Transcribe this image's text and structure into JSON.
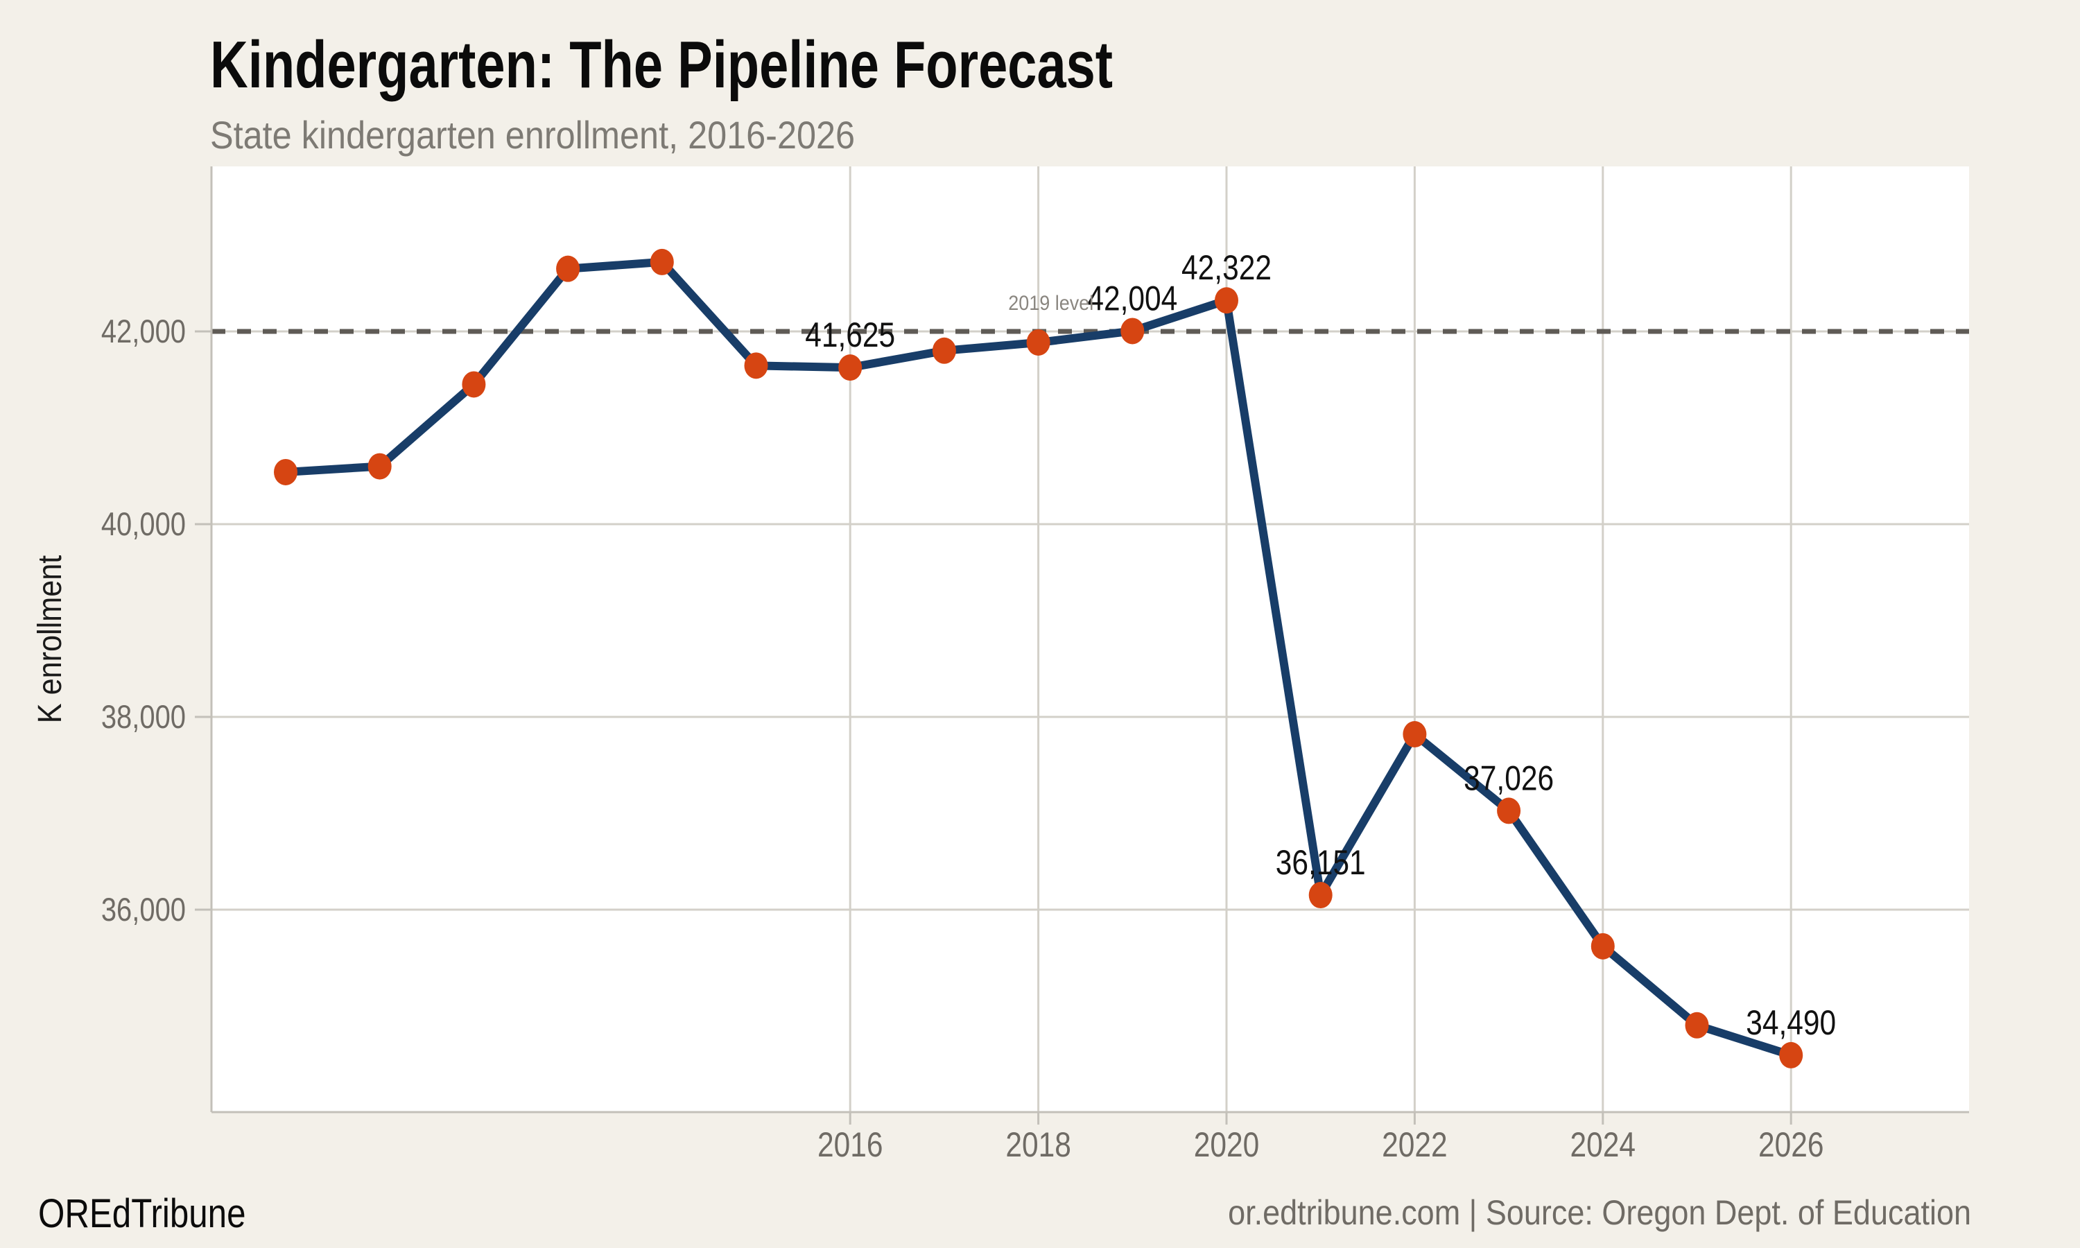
{
  "header": {
    "title": "Kindergarten: The Pipeline Forecast",
    "subtitle": "State kindergarten enrollment, 2016-2026"
  },
  "footer": {
    "brand": "OREdTribune",
    "source": "or.edtribune.com | Source: Oregon Dept. of Education"
  },
  "chart_data": {
    "type": "line",
    "title": "Kindergarten: The Pipeline Forecast",
    "subtitle": "State kindergarten enrollment, 2016-2026",
    "xlabel": "",
    "ylabel": "K enrollment",
    "x": [
      2010,
      2011,
      2012,
      2013,
      2014,
      2015,
      2016,
      2017,
      2018,
      2019,
      2020,
      2021,
      2022,
      2023,
      2024,
      2025,
      2026
    ],
    "values": [
      40540,
      40600,
      41450,
      42650,
      42720,
      41645,
      41625,
      41800,
      41885,
      42004,
      42322,
      36151,
      37820,
      37026,
      35620,
      34800,
      34490
    ],
    "point_labels": {
      "2016": "41,625",
      "2019": "42,004",
      "2020": "42,322",
      "2021": "36,151",
      "2023": "37,026",
      "2026": "34,490"
    },
    "reference_line": {
      "value": 42000,
      "label": "2019 level"
    },
    "x_ticks": [
      {
        "value": 2016,
        "label": "2016"
      },
      {
        "value": 2018,
        "label": "2018"
      },
      {
        "value": 2020,
        "label": "2020"
      },
      {
        "value": 2022,
        "label": "2022"
      },
      {
        "value": 2024,
        "label": "2024"
      },
      {
        "value": 2026,
        "label": "2026"
      }
    ],
    "y_ticks": [
      {
        "value": 36000,
        "label": "36,000"
      },
      {
        "value": 38000,
        "label": "38,000"
      },
      {
        "value": 40000,
        "label": "40,000"
      },
      {
        "value": 42000,
        "label": "42,000"
      }
    ],
    "xlim": [
      2009.2,
      2027.9
    ],
    "ylim": [
      34200,
      43350
    ],
    "grid": "on",
    "legend": "none",
    "colors": {
      "line": "#183d68",
      "marker": "#d64512",
      "reference_dash": "#5f5b56",
      "grid": "#d3d0c9",
      "axis_line": "#c3c0b9",
      "axis_text": "#6f6b65",
      "subtitle_text": "#7d7a74",
      "annotation_text": "#8a8680",
      "label_text": "#111111",
      "background": "#f3f0e9",
      "plot_background": "#ffffff"
    }
  }
}
